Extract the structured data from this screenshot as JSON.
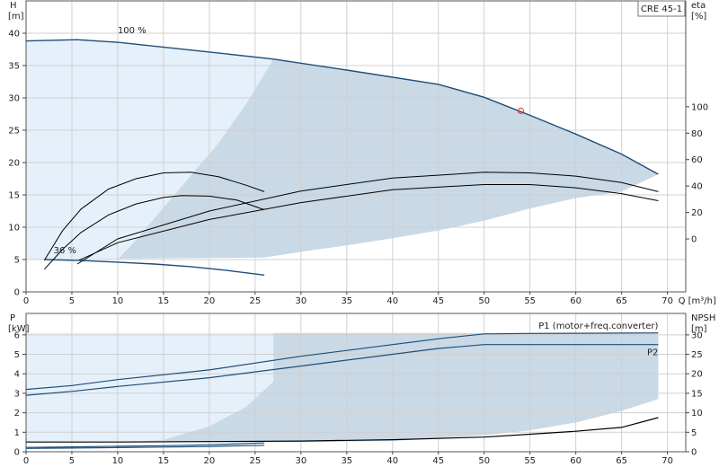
{
  "model_label": "CRE 45-1",
  "chart_data": [
    {
      "type": "line",
      "panel": "head-efficiency",
      "x_axis": {
        "label": "Q [m³/h]",
        "range": [
          0,
          72
        ],
        "ticks": [
          0,
          5,
          10,
          15,
          20,
          25,
          30,
          35,
          40,
          45,
          50,
          55,
          60,
          65,
          70
        ]
      },
      "y_left": {
        "label_line1": "H",
        "label_line2": "[m]",
        "range": [
          0,
          45
        ],
        "ticks": [
          0,
          5,
          10,
          15,
          20,
          25,
          30,
          35,
          40
        ]
      },
      "y_right": {
        "label_line1": "eta",
        "label_line2": "[%]",
        "range": [
          -40,
          180
        ],
        "ticks": [
          0,
          20,
          40,
          60,
          80,
          100
        ]
      },
      "grid": true,
      "colors": {
        "operating_area_light": "#e6f0fa",
        "operating_area_dark": "#c9d9e6",
        "head_curve": "#1f4e79",
        "eta_curve": "#000000",
        "duty_point": "#e03030"
      },
      "operating_area": {
        "outer": [
          [
            0,
            38.8
          ],
          [
            5.6,
            39
          ],
          [
            10,
            38.6
          ],
          [
            20,
            37.1
          ],
          [
            27,
            36
          ],
          [
            35,
            34.3
          ],
          [
            45,
            32.1
          ],
          [
            50,
            30.1
          ],
          [
            55,
            27.3
          ],
          [
            60,
            24.4
          ],
          [
            65,
            21.3
          ],
          [
            69,
            18.2
          ],
          [
            65,
            15.5
          ],
          [
            60,
            14.5
          ],
          [
            55,
            12.9
          ],
          [
            50,
            11
          ],
          [
            45,
            9.5
          ],
          [
            40,
            8.3
          ],
          [
            35,
            7.2
          ],
          [
            30,
            6.2
          ],
          [
            26,
            5.3
          ],
          [
            2,
            5
          ],
          [
            0,
            5
          ]
        ],
        "inner": [
          [
            0,
            38.8
          ],
          [
            5.6,
            39
          ],
          [
            10,
            38.6
          ],
          [
            20,
            37.1
          ],
          [
            27,
            36
          ],
          [
            24,
            29
          ],
          [
            21,
            23
          ],
          [
            18,
            18
          ],
          [
            15,
            13
          ],
          [
            12,
            8
          ],
          [
            10,
            5
          ],
          [
            2,
            5
          ],
          [
            0,
            5
          ]
        ]
      },
      "series": [
        {
          "name": "100 %",
          "role": "head",
          "x": [
            0,
            5.6,
            10,
            20,
            27,
            35,
            45,
            50,
            55,
            60,
            65,
            69
          ],
          "y": [
            38.8,
            39,
            38.6,
            37.1,
            36,
            34.3,
            32.1,
            30.1,
            27.3,
            24.4,
            21.3,
            18.2
          ]
        },
        {
          "name": "36 %",
          "role": "head",
          "x": [
            2,
            6,
            10,
            14,
            18,
            22,
            26
          ],
          "y": [
            5,
            4.85,
            4.6,
            4.3,
            3.9,
            3.3,
            2.6
          ]
        },
        {
          "role": "eta",
          "x": [
            5.6,
            10,
            20,
            30,
            40,
            50,
            55,
            60,
            65,
            69
          ],
          "y": [
            4.3,
            8.2,
            12.5,
            15.6,
            17.6,
            18.5,
            18.4,
            17.9,
            16.9,
            15.5
          ]
        },
        {
          "role": "eta",
          "x": [
            5.8,
            10,
            20,
            30,
            40,
            50,
            55,
            60,
            65,
            69
          ],
          "y": [
            4.9,
            7.6,
            11.2,
            13.8,
            15.8,
            16.6,
            16.6,
            16.1,
            15.2,
            14.1
          ]
        },
        {
          "role": "eta",
          "x": [
            2,
            4,
            6,
            9,
            12,
            15,
            18,
            21,
            24,
            26
          ],
          "y": [
            4.9,
            9.5,
            12.8,
            15.9,
            17.5,
            18.4,
            18.5,
            17.8,
            16.5,
            15.5
          ]
        },
        {
          "role": "eta",
          "x": [
            2,
            4,
            6,
            9,
            12,
            15,
            17,
            20,
            23,
            26
          ],
          "y": [
            3.5,
            6.6,
            9.2,
            11.9,
            13.6,
            14.6,
            14.9,
            14.8,
            14.2,
            12.7
          ]
        }
      ],
      "annotations": [
        {
          "text": "100 %",
          "x": 10,
          "y": 40
        },
        {
          "text": "36 %",
          "x": 3,
          "y": 6
        }
      ],
      "duty_point": {
        "x": 54,
        "y": 28
      }
    },
    {
      "type": "line",
      "panel": "power-npsh",
      "x_axis": {
        "range": [
          0,
          72
        ],
        "ticks": [
          0,
          5,
          10,
          15,
          20,
          25,
          30,
          35,
          40,
          45,
          50,
          55,
          60,
          65,
          70
        ]
      },
      "y_left": {
        "label_line1": "P",
        "label_line2": "[kW]",
        "range": [
          0,
          7.1
        ],
        "ticks": [
          0,
          1,
          2,
          3,
          4,
          5,
          6
        ]
      },
      "y_right": {
        "label_line1": "NPSH",
        "label_line2": "[m]",
        "range": [
          0,
          35.5
        ],
        "ticks": [
          0,
          5,
          10,
          15,
          20,
          25,
          30
        ]
      },
      "grid": true,
      "colors": {
        "power_curve": "#1f4e79",
        "npsh_curve": "#000000"
      },
      "operating_area": {
        "outer": [
          [
            0,
            0.5
          ],
          [
            10,
            0.5
          ],
          [
            20,
            0.5
          ],
          [
            26,
            0.5
          ],
          [
            30,
            0.5
          ],
          [
            40,
            0.55
          ],
          [
            50,
            0.85
          ],
          [
            55,
            1.1
          ],
          [
            60,
            1.5
          ],
          [
            65,
            2.1
          ],
          [
            69,
            2.7
          ],
          [
            69,
            6.1
          ],
          [
            27,
            6.1
          ],
          [
            0,
            6.1
          ]
        ],
        "inner": [
          [
            0,
            0.5
          ],
          [
            10,
            0.5
          ],
          [
            15,
            0.6
          ],
          [
            20,
            1.3
          ],
          [
            24,
            2.3
          ],
          [
            27,
            3.6
          ],
          [
            27,
            6.1
          ],
          [
            0,
            6.1
          ]
        ]
      },
      "series": [
        {
          "name": "P1 (motor+freq.converter)",
          "role": "power",
          "x": [
            0,
            5,
            10,
            20,
            30,
            40,
            45,
            50,
            55,
            60,
            65,
            69
          ],
          "y": [
            3.2,
            3.4,
            3.7,
            4.2,
            4.9,
            5.5,
            5.8,
            6.05,
            6.07,
            6.08,
            6.09,
            6.1
          ]
        },
        {
          "name": "P2",
          "role": "power",
          "x": [
            0,
            5,
            10,
            20,
            30,
            40,
            45,
            50,
            55,
            60,
            65,
            69
          ],
          "y": [
            2.9,
            3.1,
            3.35,
            3.8,
            4.4,
            5.0,
            5.3,
            5.5,
            5.5,
            5.5,
            5.5,
            5.5
          ]
        },
        {
          "role": "power",
          "x": [
            0,
            5,
            10,
            15,
            20,
            26
          ],
          "y": [
            0.22,
            0.25,
            0.28,
            0.31,
            0.36,
            0.45
          ]
        },
        {
          "role": "power",
          "x": [
            0,
            5,
            10,
            15,
            20,
            26
          ],
          "y": [
            0.17,
            0.19,
            0.21,
            0.24,
            0.27,
            0.33
          ]
        },
        {
          "role": "npsh",
          "x": [
            0,
            10,
            20,
            30,
            40,
            50,
            55,
            60,
            65,
            69
          ],
          "y": [
            0.5,
            0.5,
            0.52,
            0.55,
            0.62,
            0.75,
            0.9,
            1.05,
            1.25,
            1.75
          ]
        }
      ],
      "legend": [
        {
          "text": "P1 (motor+freq.converter)",
          "x": 69,
          "y": 6.45
        },
        {
          "text": "P2",
          "x": 69,
          "y": 5.1
        }
      ]
    }
  ]
}
